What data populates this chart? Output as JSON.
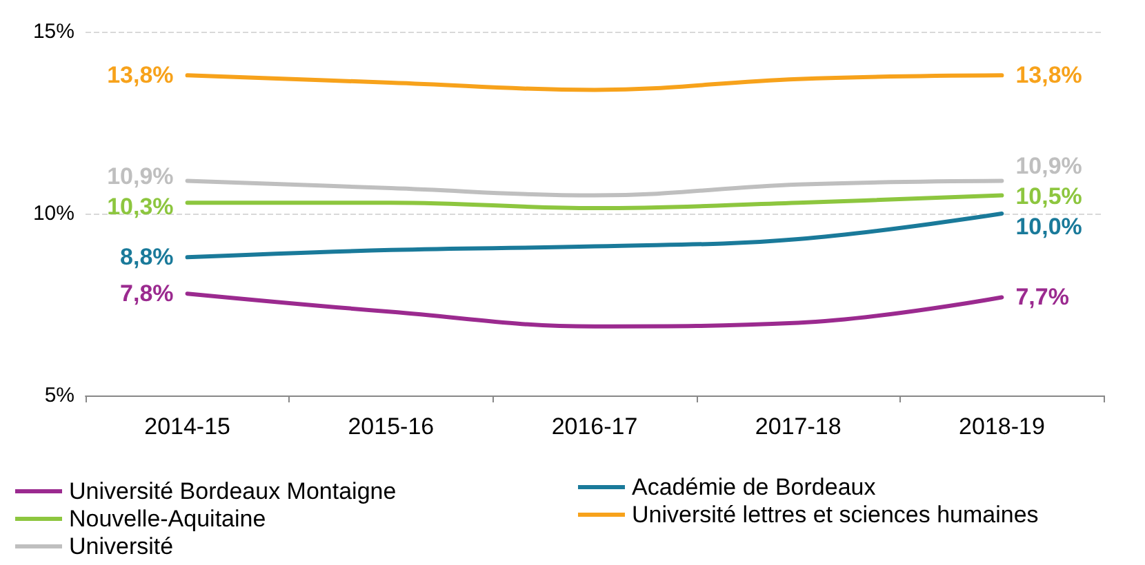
{
  "chart_data": {
    "type": "line",
    "categories": [
      "2014-15",
      "2015-16",
      "2016-17",
      "2017-18",
      "2018-19"
    ],
    "series": [
      {
        "name": "Université Bordeaux Montaigne",
        "color": "#9b2a8f",
        "values": [
          7.8,
          7.3,
          6.9,
          7.0,
          7.7
        ],
        "value_labels": [
          "7,8%",
          null,
          null,
          null,
          "7,7%"
        ]
      },
      {
        "name": "Académie de Bordeaux",
        "color": "#1a7a9a",
        "values": [
          8.8,
          9.0,
          9.1,
          9.3,
          10.0
        ],
        "value_labels": [
          "8,8%",
          null,
          null,
          null,
          "10,0%"
        ]
      },
      {
        "name": "Nouvelle-Aquitaine",
        "color": "#8dc63f",
        "values": [
          10.3,
          10.3,
          10.15,
          10.3,
          10.5
        ],
        "value_labels": [
          "10,3%",
          null,
          null,
          null,
          "10,5%"
        ]
      },
      {
        "name": "Université lettres et sciences humaines",
        "color": "#f7a21b",
        "values": [
          13.8,
          13.6,
          13.4,
          13.7,
          13.8
        ],
        "value_labels": [
          "13,8%",
          null,
          null,
          null,
          "13,8%"
        ]
      },
      {
        "name": "Université",
        "color": "#bfbfbf",
        "values": [
          10.9,
          10.7,
          10.5,
          10.8,
          10.9
        ],
        "value_labels": [
          "10,9%",
          null,
          null,
          null,
          "10,9%"
        ]
      }
    ],
    "ylim": [
      5,
      15
    ],
    "yticks": [
      {
        "value": 5,
        "label": "5%"
      },
      {
        "value": 10,
        "label": "10%"
      },
      {
        "value": 15,
        "label": "15%"
      }
    ],
    "grid": "y",
    "legend": "bottom",
    "marker": "none",
    "line_style": "solid"
  }
}
